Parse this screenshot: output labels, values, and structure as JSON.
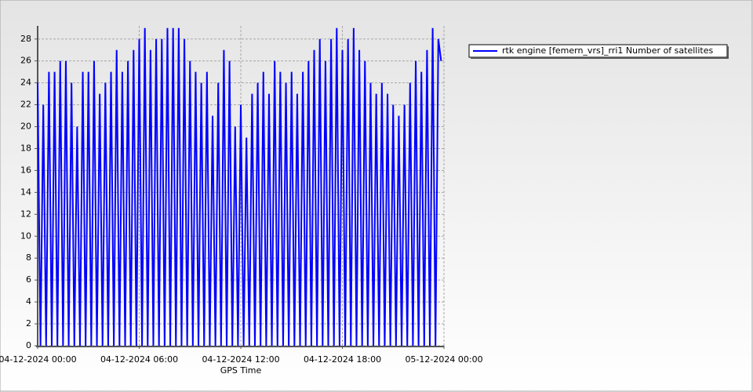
{
  "chart_data": {
    "type": "line",
    "xlabel": "GPS Time",
    "x": [
      "04-12-2024 00:00",
      "04-12-2024 00:10",
      "04-12-2024 00:20",
      "04-12-2024 00:30",
      "04-12-2024 00:40",
      "04-12-2024 00:50",
      "04-12-2024 01:00",
      "04-12-2024 01:10",
      "04-12-2024 01:20",
      "04-12-2024 01:30",
      "04-12-2024 01:40",
      "04-12-2024 01:50",
      "04-12-2024 02:00",
      "04-12-2024 02:10",
      "04-12-2024 02:20",
      "04-12-2024 02:30",
      "04-12-2024 02:40",
      "04-12-2024 02:50",
      "04-12-2024 03:00",
      "04-12-2024 03:10",
      "04-12-2024 03:20",
      "04-12-2024 03:30",
      "04-12-2024 03:40",
      "04-12-2024 03:50",
      "04-12-2024 04:00",
      "04-12-2024 04:10",
      "04-12-2024 04:20",
      "04-12-2024 04:30",
      "04-12-2024 04:40",
      "04-12-2024 04:50",
      "04-12-2024 05:00",
      "04-12-2024 05:10",
      "04-12-2024 05:20",
      "04-12-2024 05:30",
      "04-12-2024 05:40",
      "04-12-2024 05:50",
      "04-12-2024 06:00",
      "04-12-2024 06:10",
      "04-12-2024 06:20",
      "04-12-2024 06:30",
      "04-12-2024 06:40",
      "04-12-2024 06:50",
      "04-12-2024 07:00",
      "04-12-2024 07:10",
      "04-12-2024 07:20",
      "04-12-2024 07:30",
      "04-12-2024 07:40",
      "04-12-2024 07:50",
      "04-12-2024 08:00",
      "04-12-2024 08:10",
      "04-12-2024 08:20",
      "04-12-2024 08:30",
      "04-12-2024 08:40",
      "04-12-2024 08:50",
      "04-12-2024 09:00",
      "04-12-2024 09:10",
      "04-12-2024 09:20",
      "04-12-2024 09:30",
      "04-12-2024 09:40",
      "04-12-2024 09:50",
      "04-12-2024 10:00",
      "04-12-2024 10:10",
      "04-12-2024 10:20",
      "04-12-2024 10:30",
      "04-12-2024 10:40",
      "04-12-2024 10:50",
      "04-12-2024 11:00",
      "04-12-2024 11:10",
      "04-12-2024 11:20",
      "04-12-2024 11:30",
      "04-12-2024 11:40",
      "04-12-2024 11:50",
      "04-12-2024 12:00",
      "04-12-2024 12:10",
      "04-12-2024 12:20",
      "04-12-2024 12:30",
      "04-12-2024 12:40",
      "04-12-2024 12:50",
      "04-12-2024 13:00",
      "04-12-2024 13:10",
      "04-12-2024 13:20",
      "04-12-2024 13:30",
      "04-12-2024 13:40",
      "04-12-2024 13:50",
      "04-12-2024 14:00",
      "04-12-2024 14:10",
      "04-12-2024 14:20",
      "04-12-2024 14:30",
      "04-12-2024 14:40",
      "04-12-2024 14:50",
      "04-12-2024 15:00",
      "04-12-2024 15:10",
      "04-12-2024 15:20",
      "04-12-2024 15:30",
      "04-12-2024 15:40",
      "04-12-2024 15:50",
      "04-12-2024 16:00",
      "04-12-2024 16:10",
      "04-12-2024 16:20",
      "04-12-2024 16:30",
      "04-12-2024 16:40",
      "04-12-2024 16:50",
      "04-12-2024 17:00",
      "04-12-2024 17:10",
      "04-12-2024 17:20",
      "04-12-2024 17:30",
      "04-12-2024 17:40",
      "04-12-2024 17:50",
      "04-12-2024 18:00",
      "04-12-2024 18:10",
      "04-12-2024 18:20",
      "04-12-2024 18:30",
      "04-12-2024 18:40",
      "04-12-2024 18:50",
      "04-12-2024 19:00",
      "04-12-2024 19:10",
      "04-12-2024 19:20",
      "04-12-2024 19:30",
      "04-12-2024 19:40",
      "04-12-2024 19:50",
      "04-12-2024 20:00",
      "04-12-2024 20:10",
      "04-12-2024 20:20",
      "04-12-2024 20:30",
      "04-12-2024 20:40",
      "04-12-2024 20:50",
      "04-12-2024 21:00",
      "04-12-2024 21:10",
      "04-12-2024 21:20",
      "04-12-2024 21:30",
      "04-12-2024 21:40",
      "04-12-2024 21:50",
      "04-12-2024 22:00",
      "04-12-2024 22:10",
      "04-12-2024 22:20",
      "04-12-2024 22:30",
      "04-12-2024 22:40",
      "04-12-2024 22:50",
      "04-12-2024 23:00",
      "04-12-2024 23:10",
      "04-12-2024 23:20",
      "04-12-2024 23:30",
      "04-12-2024 23:40",
      "04-12-2024 23:50"
    ],
    "series": [
      {
        "name": "rtk engine [femern_vrs]_rri1 Number of satellites",
        "color": "#0000ff",
        "values": [
          24,
          0,
          22,
          0,
          25,
          0,
          25,
          0,
          26,
          0,
          26,
          0,
          24,
          0,
          20,
          0,
          25,
          0,
          25,
          0,
          26,
          0,
          23,
          0,
          24,
          0,
          25,
          0,
          27,
          0,
          25,
          0,
          26,
          0,
          27,
          0,
          28,
          0,
          29,
          0,
          27,
          0,
          28,
          0,
          28,
          0,
          29,
          0,
          29,
          0,
          29,
          0,
          28,
          0,
          26,
          0,
          25,
          0,
          24,
          0,
          25,
          0,
          21,
          0,
          24,
          0,
          27,
          0,
          26,
          0,
          20,
          0,
          22,
          0,
          19,
          0,
          23,
          0,
          24,
          0,
          25,
          0,
          23,
          0,
          26,
          0,
          25,
          0,
          24,
          0,
          25,
          0,
          23,
          0,
          25,
          0,
          26,
          0,
          27,
          0,
          28,
          0,
          26,
          0,
          28,
          0,
          29,
          0,
          27,
          0,
          28,
          0,
          29,
          0,
          27,
          0,
          26,
          0,
          24,
          0,
          23,
          0,
          24,
          0,
          23,
          0,
          22,
          0,
          21,
          0,
          22,
          0,
          24,
          0,
          26,
          0,
          25,
          0,
          27,
          0,
          29,
          0,
          28,
          26
        ]
      }
    ],
    "xlim": [
      "04-12-2024 00:00",
      "05-12-2024 00:00"
    ],
    "xticks": [
      "04-12-2024 00:00",
      "04-12-2024 06:00",
      "04-12-2024 12:00",
      "04-12-2024 18:00",
      "05-12-2024 00:00"
    ],
    "ylim": [
      0,
      29.2
    ],
    "yticks": [
      0,
      2,
      4,
      6,
      8,
      10,
      12,
      14,
      16,
      18,
      20,
      22,
      24,
      26,
      28
    ],
    "grid": true,
    "legend": "upper right"
  }
}
